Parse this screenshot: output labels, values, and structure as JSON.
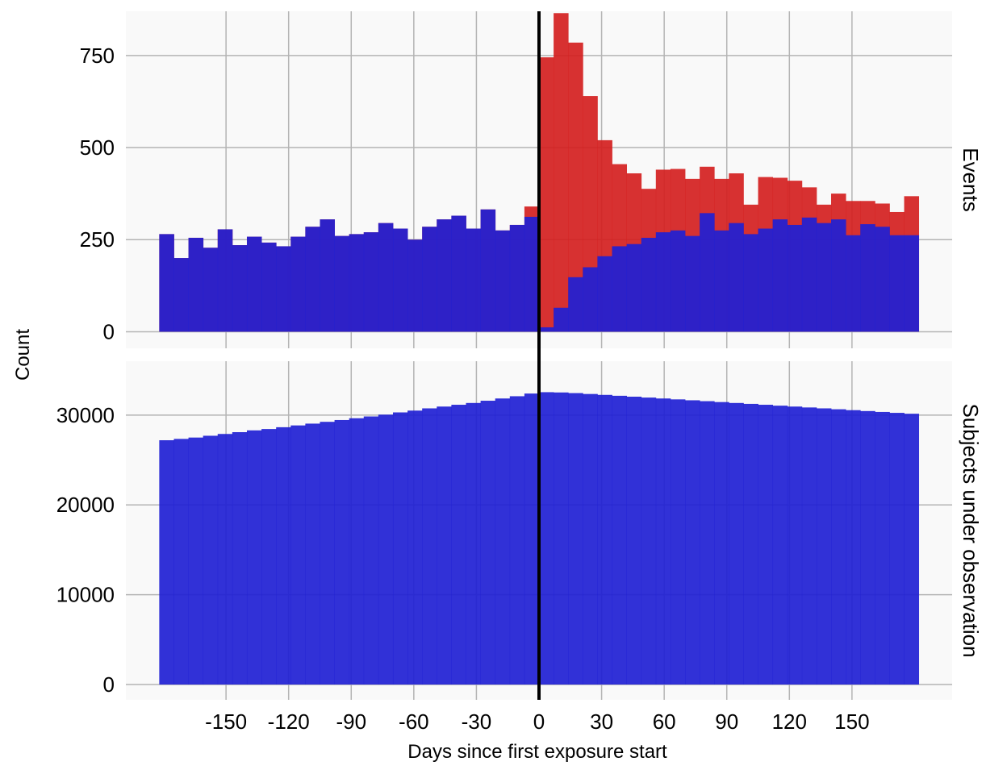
{
  "chart_data": {
    "type": "bar",
    "xlabel": "Days since first exposure start",
    "ylabel": "Count",
    "x_ticks": [
      -150,
      -120,
      -90,
      -60,
      -30,
      0,
      30,
      60,
      90,
      120,
      150
    ],
    "x_lim": [
      -198,
      198
    ],
    "bin_width": 7,
    "bin_starts": [
      -182,
      -175,
      -168,
      -161,
      -154,
      -147,
      -140,
      -133,
      -126,
      -119,
      -112,
      -105,
      -98,
      -91,
      -84,
      -77,
      -70,
      -63,
      -56,
      -49,
      -42,
      -35,
      -28,
      -21,
      -14,
      -7,
      0,
      7,
      14,
      21,
      28,
      35,
      42,
      49,
      56,
      63,
      70,
      77,
      84,
      91,
      98,
      105,
      112,
      119,
      126,
      133,
      140,
      147,
      154,
      161,
      168,
      175
    ],
    "reference_line": {
      "x": 0,
      "color": "#000000"
    },
    "panels": [
      {
        "strip_label": "Events",
        "y_ticks": [
          0,
          250,
          500,
          750
        ],
        "y_lim": [
          -45,
          870
        ],
        "series": [
          {
            "color": "#d42020",
            "values": [
              265,
              200,
              255,
              228,
              278,
              235,
              258,
              242,
              232,
              258,
              285,
              305,
              260,
              265,
              270,
              295,
              280,
              250,
              285,
              305,
              315,
              280,
              332,
              275,
              290,
              340,
              745,
              865,
              785,
              640,
              520,
              455,
              430,
              388,
              440,
              442,
              415,
              448,
              415,
              430,
              345,
              420,
              418,
              410,
              392,
              345,
              375,
              355,
              355,
              348,
              325,
              368
            ]
          },
          {
            "color": "#2020d4",
            "values": [
              265,
              200,
              255,
              228,
              278,
              235,
              258,
              242,
              232,
              258,
              285,
              305,
              260,
              265,
              270,
              295,
              280,
              250,
              285,
              305,
              315,
              280,
              332,
              275,
              290,
              312,
              12,
              65,
              148,
              175,
              205,
              232,
              238,
              255,
              270,
              275,
              260,
              322,
              275,
              295,
              265,
              280,
              305,
              290,
              310,
              295,
              305,
              262,
              292,
              285,
              262,
              262
            ]
          }
        ]
      },
      {
        "strip_label": "Subjects under observation",
        "y_ticks": [
          0,
          10000,
          20000,
          30000
        ],
        "y_lim": [
          -1700,
          36000
        ],
        "series": [
          {
            "color": "#2020d4",
            "values": [
              27200,
              27350,
              27500,
              27700,
              27900,
              28100,
              28300,
              28450,
              28650,
              28850,
              29050,
              29250,
              29450,
              29650,
              29850,
              30050,
              30300,
              30500,
              30750,
              30950,
              31150,
              31350,
              31600,
              31850,
              32100,
              32400,
              32550,
              32520,
              32450,
              32350,
              32250,
              32150,
              32050,
              31950,
              31850,
              31750,
              31650,
              31550,
              31450,
              31350,
              31250,
              31150,
              31050,
              30950,
              30850,
              30750,
              30650,
              30550,
              30450,
              30350,
              30250,
              30150
            ]
          }
        ]
      }
    ]
  }
}
